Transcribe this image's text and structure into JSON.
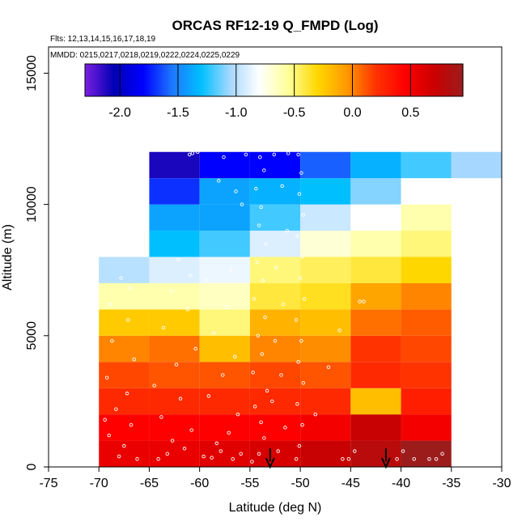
{
  "chart_data": {
    "type": "heatmap",
    "title": "ORCAS RF12-19 Q_FMPD (Log)",
    "flights_note": "Flts: 12,13,14,15,16,17,18,19",
    "dates_note": "MMDD: 0215,0217,0218,0219,0222,0224,0225,0229",
    "xlabel": "Latitude (deg N)",
    "ylabel": "Altitude (m)",
    "xlim": [
      -75,
      -30
    ],
    "ylim": [
      0,
      16000
    ],
    "x_ticks": [
      -75,
      -70,
      -65,
      -60,
      -55,
      -50,
      -45,
      -40,
      -35,
      -30
    ],
    "x_tick_labels": [
      "-75",
      "-70",
      "-65",
      "-60",
      "-55",
      "-50",
      "-45",
      "-40",
      "-35",
      "-30"
    ],
    "y_ticks": [
      0,
      5000,
      10000,
      15000
    ],
    "y_tick_labels": [
      "0",
      "5000",
      "10000",
      "15000"
    ],
    "colorbar": {
      "range": [
        -2.3,
        0.95
      ],
      "ticks": [
        -2.0,
        -1.5,
        -1.0,
        -0.5,
        0.0,
        0.5
      ],
      "tick_labels": [
        "-2.0",
        "-1.5",
        "-1.0",
        "-0.5",
        "0.0",
        "0.5"
      ],
      "colors": [
        "#7b1fe0",
        "#0000b4",
        "#0000ff",
        "#1e78ff",
        "#00bfff",
        "#a6d8ff",
        "#ffffff",
        "#ffff99",
        "#ffd700",
        "#ff9900",
        "#ff3300",
        "#ff0000",
        "#cc0000",
        "#9c1c1c"
      ]
    },
    "bin_width_deg": 5,
    "bin_height_m": 1000,
    "columns": [
      {
        "lat_min": -70,
        "lat_max": -65,
        "alt_min": 0,
        "values": [
          0.55,
          0.45,
          0.25,
          0.15,
          0.0,
          -0.25,
          -0.6,
          -1.0
        ]
      },
      {
        "lat_min": -65,
        "lat_max": -60,
        "alt_min": 0,
        "values": [
          0.55,
          0.45,
          0.25,
          0.12,
          0.05,
          -0.25,
          -0.6,
          -0.9,
          -1.3,
          -1.4,
          -1.7,
          -2.1
        ]
      },
      {
        "lat_min": -60,
        "lat_max": -55,
        "alt_min": 0,
        "values": [
          0.6,
          0.45,
          0.25,
          0.12,
          -0.2,
          -0.5,
          -0.65,
          -0.85,
          -1.2,
          -1.4,
          -1.4,
          -1.8
        ]
      },
      {
        "lat_min": -55,
        "lat_max": -50,
        "alt_min": 0,
        "values": [
          0.65,
          0.45,
          0.25,
          0.15,
          0.0,
          -0.15,
          -0.4,
          -0.5,
          -0.9,
          -1.2,
          -1.35,
          -1.8
        ]
      },
      {
        "lat_min": -50,
        "lat_max": -45,
        "alt_min": 0,
        "values": [
          0.72,
          0.5,
          0.25,
          0.12,
          -0.02,
          -0.2,
          -0.35,
          -0.45,
          -0.7,
          -0.95,
          -1.3,
          -1.6
        ]
      },
      {
        "lat_min": -45,
        "lat_max": -40,
        "alt_min": 0,
        "values": [
          0.8,
          0.72,
          -0.2,
          0.25,
          0.2,
          0.05,
          -0.1,
          -0.4,
          -0.6,
          -0.8,
          -1.1,
          -1.35
        ]
      },
      {
        "lat_min": -40,
        "lat_max": -35,
        "alt_min": 0,
        "values": [
          0.95,
          0.5,
          0.3,
          0.2,
          0.15,
          0.1,
          0.0,
          -0.3,
          -0.5,
          -0.6,
          -0.8,
          -1.2
        ]
      },
      {
        "lat_min": -35,
        "lat_max": -30,
        "alt_min": 11000,
        "values": [
          -1.05
        ]
      }
    ],
    "arrows_lat": [
      -53,
      -41.5
    ],
    "markers": [
      [
        -68,
        400
      ],
      [
        -67.5,
        800
      ],
      [
        -69,
        1200
      ],
      [
        -66.8,
        1600
      ],
      [
        -68.3,
        2200
      ],
      [
        -67.2,
        2800
      ],
      [
        -69.2,
        3400
      ],
      [
        -66.5,
        4100
      ],
      [
        -68.7,
        4800
      ],
      [
        -67.1,
        5600
      ],
      [
        -68.9,
        6200
      ],
      [
        -66.9,
        6800
      ],
      [
        -67.8,
        7200
      ],
      [
        -69.4,
        1800
      ],
      [
        -66.2,
        300
      ],
      [
        -64.1,
        300
      ],
      [
        -63.2,
        500
      ],
      [
        -61.5,
        700
      ],
      [
        -62.7,
        1000
      ],
      [
        -60.8,
        1400
      ],
      [
        -63.8,
        1900
      ],
      [
        -61.9,
        2600
      ],
      [
        -64.5,
        3100
      ],
      [
        -62.3,
        3900
      ],
      [
        -60.4,
        4500
      ],
      [
        -63.6,
        5300
      ],
      [
        -61.2,
        6000
      ],
      [
        -62.8,
        6700
      ],
      [
        -60.9,
        7300
      ],
      [
        -62.1,
        7900
      ],
      [
        -61.0,
        11900
      ],
      [
        -60.7,
        11950
      ],
      [
        -60.2,
        12000
      ],
      [
        -59.6,
        400
      ],
      [
        -58.8,
        350
      ],
      [
        -57.9,
        600
      ],
      [
        -56.7,
        300
      ],
      [
        -55.9,
        500
      ],
      [
        -58.3,
        900
      ],
      [
        -57.1,
        1300
      ],
      [
        -56.2,
        2000
      ],
      [
        -59.1,
        2700
      ],
      [
        -57.7,
        3500
      ],
      [
        -56.5,
        4200
      ],
      [
        -58.6,
        5100
      ],
      [
        -57.3,
        6100
      ],
      [
        -59.4,
        7100
      ],
      [
        -56.9,
        7500
      ],
      [
        -58.1,
        10900
      ],
      [
        -56.4,
        10500
      ],
      [
        -55.8,
        10000
      ],
      [
        -55.4,
        11900
      ],
      [
        -57.6,
        11800
      ],
      [
        -54.8,
        200
      ],
      [
        -54.1,
        500
      ],
      [
        -53.6,
        1100
      ],
      [
        -53.9,
        1700
      ],
      [
        -54.5,
        2300
      ],
      [
        -53.3,
        2900
      ],
      [
        -54.7,
        3600
      ],
      [
        -53.8,
        4300
      ],
      [
        -54.2,
        5000
      ],
      [
        -53.5,
        5700
      ],
      [
        -54.6,
        6400
      ],
      [
        -53.7,
        7100
      ],
      [
        -54.3,
        7800
      ],
      [
        -53.4,
        8500
      ],
      [
        -54.1,
        9200
      ],
      [
        -53.9,
        9900
      ],
      [
        -54.4,
        10600
      ],
      [
        -53.6,
        11300
      ],
      [
        -54.0,
        11800
      ],
      [
        -52.2,
        600
      ],
      [
        -51.5,
        1500
      ],
      [
        -52.8,
        2500
      ],
      [
        -51.9,
        3500
      ],
      [
        -52.5,
        4800
      ],
      [
        -51.7,
        6200
      ],
      [
        -52.4,
        7600
      ],
      [
        -51.3,
        9000
      ],
      [
        -51.8,
        10700
      ],
      [
        -52.6,
        11900
      ],
      [
        -51.2,
        11950
      ],
      [
        -50.4,
        300
      ],
      [
        -50.1,
        800
      ],
      [
        -49.8,
        1600
      ],
      [
        -50.3,
        2400
      ],
      [
        -49.7,
        3200
      ],
      [
        -50.2,
        4000
      ],
      [
        -49.9,
        4800
      ],
      [
        -50.4,
        5600
      ],
      [
        -49.6,
        6400
      ],
      [
        -50.0,
        7200
      ],
      [
        -49.8,
        8000
      ],
      [
        -50.3,
        8800
      ],
      [
        -49.7,
        9600
      ],
      [
        -50.1,
        10400
      ],
      [
        -49.9,
        11200
      ],
      [
        -50.2,
        11900
      ],
      [
        -45.8,
        300
      ],
      [
        -45.2,
        300
      ],
      [
        -44.6,
        600
      ],
      [
        -40.4,
        300
      ],
      [
        -39.8,
        600
      ],
      [
        -38.7,
        300
      ],
      [
        -37.2,
        300
      ],
      [
        -36.5,
        300
      ],
      [
        -35.9,
        500
      ],
      [
        -44.1,
        6300
      ],
      [
        -43.7,
        6300
      ],
      [
        -48.5,
        2000
      ],
      [
        -47.2,
        3800
      ],
      [
        -46.1,
        5200
      ]
    ]
  }
}
